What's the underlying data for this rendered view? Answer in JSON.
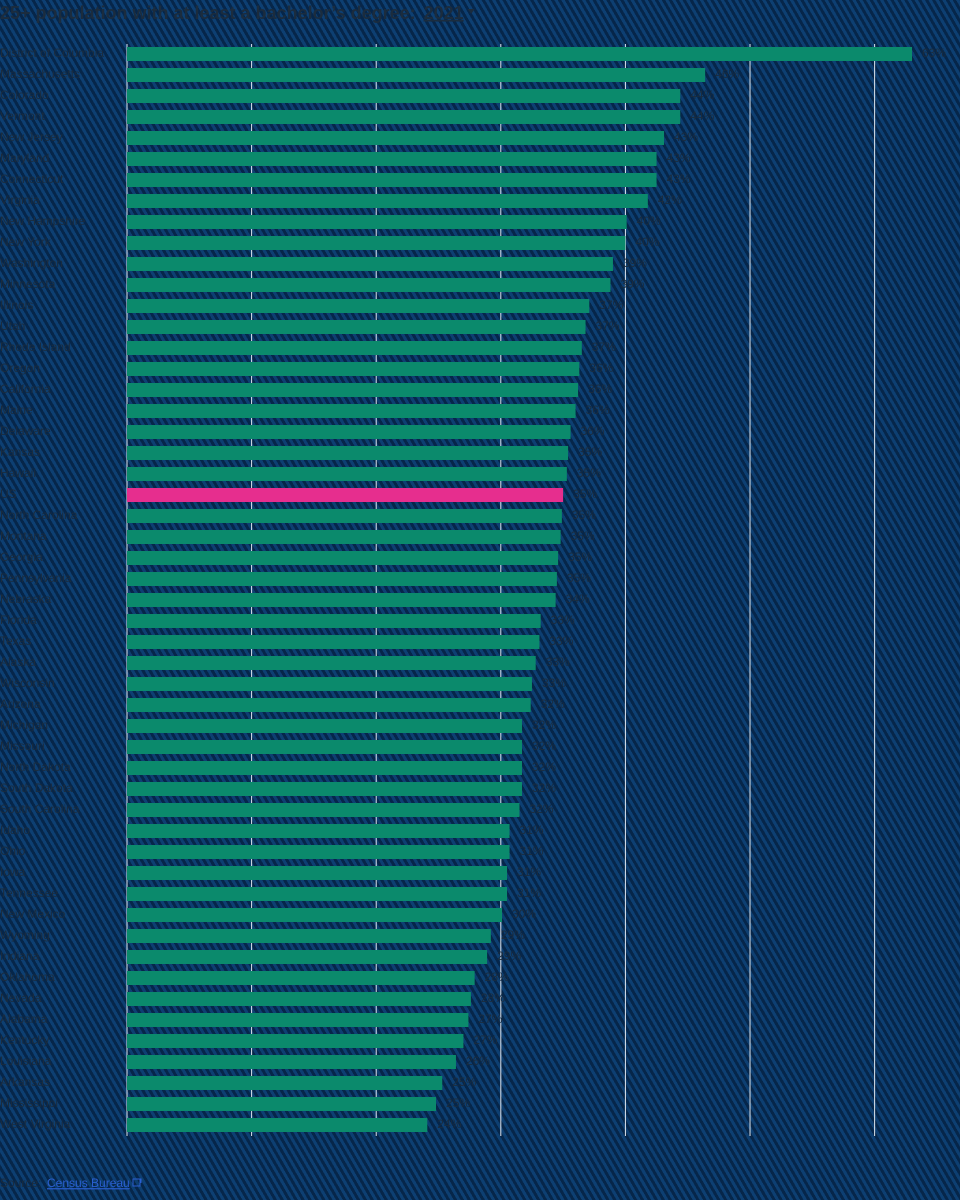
{
  "chart_data": {
    "type": "bar",
    "orientation": "horizontal",
    "title": "25+ population with at least a bachelor’s degree:",
    "selector": "2021",
    "categories": [
      "District of Columbia",
      "Massachusetts",
      "Colorado",
      "Vermont",
      "New Jersey",
      "Maryland",
      "Connecticut",
      "Virginia",
      "New Hampshire",
      "New York",
      "Washington",
      "Minnesota",
      "Illinois",
      "Utah",
      "Rhode Island",
      "Oregon",
      "California",
      "Maine",
      "Delaware",
      "Kansas",
      "Hawaii",
      "US",
      "North Carolina",
      "Montana",
      "Georgia",
      "Pennsylvania",
      "Nebraska",
      "Florida",
      "Texas",
      "Alaska",
      "Wisconsin",
      "Arizona",
      "Michigan",
      "Missouri",
      "North Dakota",
      "South Dakota",
      "South Carolina",
      "Idaho",
      "Ohio",
      "Iowa",
      "Tennessee",
      "New Mexico",
      "Wyoming",
      "Indiana",
      "Oklahoma",
      "Nevada",
      "Alabama",
      "Kentucky",
      "Louisiana",
      "Arkansas",
      "Mississippi",
      "West Virginia"
    ],
    "values": [
      63.0,
      46.4,
      44.4,
      44.4,
      43.1,
      42.5,
      42.5,
      41.8,
      40.1,
      40.0,
      39.0,
      38.8,
      37.1,
      36.8,
      36.5,
      36.3,
      36.2,
      36.0,
      35.6,
      35.4,
      35.3,
      35.0,
      34.9,
      34.8,
      34.6,
      34.5,
      34.4,
      33.2,
      33.1,
      32.8,
      32.5,
      32.4,
      31.7,
      31.7,
      31.7,
      31.7,
      31.5,
      30.7,
      30.7,
      30.5,
      30.5,
      30.1,
      29.2,
      28.9,
      27.9,
      27.6,
      27.4,
      27.0,
      26.4,
      25.3,
      24.8,
      24.1
    ],
    "value_labels": [
      "63%",
      "46%",
      "44%",
      "44%",
      "43%",
      "43%",
      "43%",
      "42%",
      "40%",
      "40%",
      "39%",
      "39%",
      "37%",
      "37%",
      "37%",
      "36%",
      "36%",
      "36%",
      "36%",
      "35%",
      "35%",
      "35%",
      "35%",
      "35%",
      "35%",
      "35%",
      "34%",
      "33%",
      "33%",
      "33%",
      "33%",
      "32%",
      "32%",
      "32%",
      "32%",
      "32%",
      "32%",
      "31%",
      "31%",
      "31%",
      "31%",
      "30%",
      "29%",
      "29%",
      "28%",
      "28%",
      "27%",
      "27%",
      "26%",
      "25%",
      "25%",
      "24%"
    ],
    "colors": [
      "#0b8a6c",
      "#0b8a6c",
      "#0b8a6c",
      "#0b8a6c",
      "#0b8a6c",
      "#0b8a6c",
      "#0b8a6c",
      "#0b8a6c",
      "#0b8a6c",
      "#0b8a6c",
      "#0b8a6c",
      "#0b8a6c",
      "#0b8a6c",
      "#0b8a6c",
      "#0b8a6c",
      "#0b8a6c",
      "#0b8a6c",
      "#0b8a6c",
      "#0b8a6c",
      "#0b8a6c",
      "#0b8a6c",
      "#e62e8e",
      "#0b8a6c",
      "#0b8a6c",
      "#0b8a6c",
      "#0b8a6c",
      "#0b8a6c",
      "#0b8a6c",
      "#0b8a6c",
      "#0b8a6c",
      "#0b8a6c",
      "#0b8a6c",
      "#0b8a6c",
      "#0b8a6c",
      "#0b8a6c",
      "#0b8a6c",
      "#0b8a6c",
      "#0b8a6c",
      "#0b8a6c",
      "#0b8a6c",
      "#0b8a6c",
      "#0b8a6c",
      "#0b8a6c",
      "#0b8a6c",
      "#0b8a6c",
      "#0b8a6c",
      "#0b8a6c",
      "#0b8a6c",
      "#0b8a6c",
      "#0b8a6c",
      "#0b8a6c",
      "#0b8a6c"
    ],
    "xlim": [
      0,
      63
    ],
    "xticks": [
      0,
      10,
      20,
      30,
      40,
      50,
      60
    ],
    "grid": true,
    "source_label": "Source:",
    "source": "Census Bureau"
  }
}
